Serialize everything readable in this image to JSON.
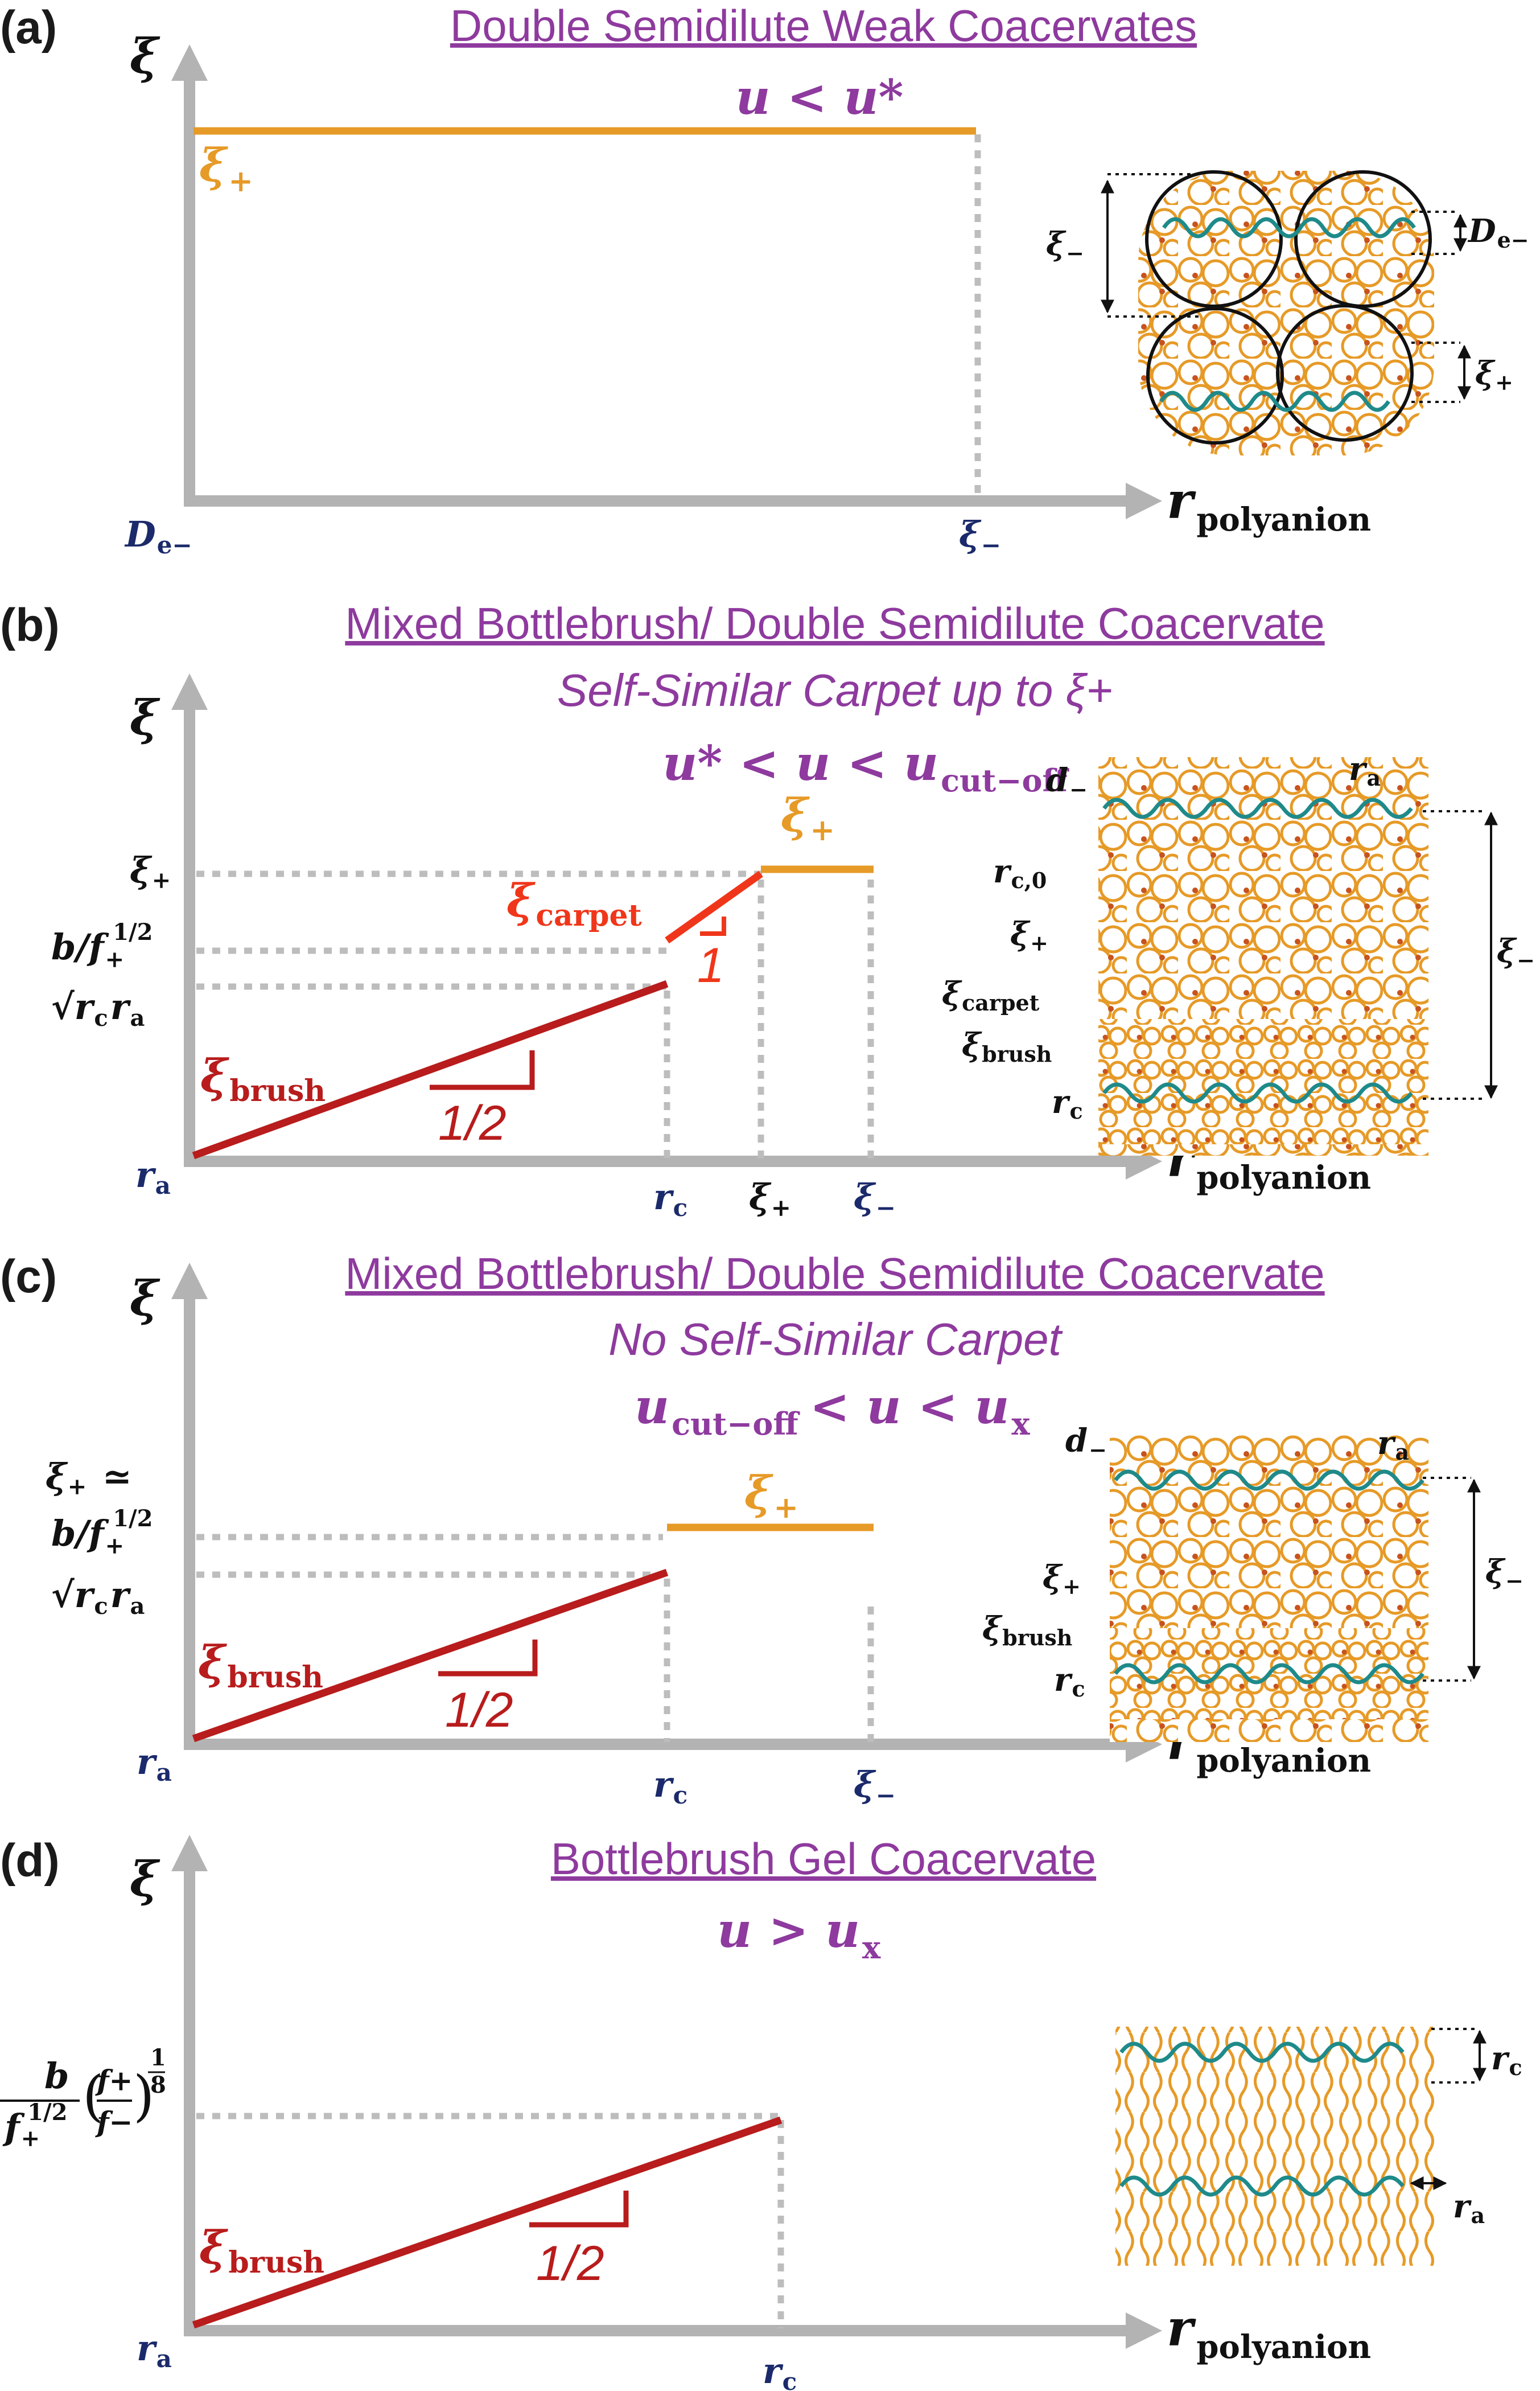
{
  "panels": [
    {
      "id": "a",
      "label": "(a)",
      "title": "Double Semidilute Weak Coacervates",
      "condition": "u < u*",
      "y_axis": "ξ",
      "x_axis": "r",
      "x_axis_sub": "polyanion",
      "x_ticks": [
        {
          "main": "D",
          "sub": "e−"
        },
        {
          "main": "ξ",
          "sub": "−"
        }
      ],
      "curve_labels": [
        {
          "main": "ξ",
          "sub": "+"
        }
      ],
      "schematic_labels": [
        {
          "main": "ξ",
          "sub": "−"
        },
        {
          "main": "D",
          "sub": "e−"
        },
        {
          "main": "ξ",
          "sub": "+"
        }
      ]
    },
    {
      "id": "b",
      "label": "(b)",
      "title": "Mixed Bottlebrush/ Double Semidilute Coacervate",
      "subtitle": "Self-Similar Carpet up to ξ+",
      "condition": "u* < u < u",
      "condition_sub": "cut−off",
      "y_axis": "ξ",
      "x_axis": "r",
      "x_axis_sub": "polyanion",
      "x_ticks": [
        {
          "main": "r",
          "sub": "a"
        },
        {
          "main": "r",
          "sub": "c"
        },
        {
          "main": "ξ",
          "sub": "+"
        },
        {
          "main": "ξ",
          "sub": "−"
        }
      ],
      "y_ticks": [
        {
          "main": "ξ",
          "sub": "+"
        },
        {
          "main": "b/f",
          "sub": "+",
          "sup": "1/2"
        },
        {
          "main": "√r",
          "sub": "c",
          "main2": "r",
          "sub2": "a"
        }
      ],
      "curve_labels": [
        {
          "main": "ξ",
          "sub": "brush"
        },
        {
          "main": "ξ",
          "sub": "carpet"
        },
        {
          "main": "ξ",
          "sub": "+"
        }
      ],
      "slopes": [
        "1/2",
        "1"
      ],
      "schematic_labels": [
        {
          "main": "d",
          "sub": "−"
        },
        {
          "main": "r",
          "sub": "a"
        },
        {
          "main": "r",
          "sub": "c,0"
        },
        {
          "main": "ξ",
          "sub": "+"
        },
        {
          "main": "ξ",
          "sub": "carpet"
        },
        {
          "main": "ξ",
          "sub": "brush"
        },
        {
          "main": "r",
          "sub": "c"
        },
        {
          "main": "ξ",
          "sub": "−"
        }
      ]
    },
    {
      "id": "c",
      "label": "(c)",
      "title": "Mixed Bottlebrush/ Double Semidilute Coacervate",
      "subtitle": "No Self-Similar Carpet",
      "condition": "u",
      "condition_sub": "cut−off",
      "condition_rest": "< u < u",
      "condition_sub2": "x",
      "y_axis": "ξ",
      "x_axis": "r",
      "x_axis_sub": "polyanion",
      "x_ticks": [
        {
          "main": "r",
          "sub": "a"
        },
        {
          "main": "r",
          "sub": "c"
        },
        {
          "main": "ξ",
          "sub": "−"
        }
      ],
      "y_ticks": [
        {
          "main": "ξ",
          "sub": "+",
          "tail": " ≃"
        },
        {
          "main": "b/f",
          "sub": "+",
          "sup": "1/2"
        },
        {
          "main": "√r",
          "sub": "c",
          "main2": "r",
          "sub2": "a"
        }
      ],
      "curve_labels": [
        {
          "main": "ξ",
          "sub": "brush"
        },
        {
          "main": "ξ",
          "sub": "+"
        }
      ],
      "slopes": [
        "1/2"
      ],
      "schematic_labels": [
        {
          "main": "d",
          "sub": "−"
        },
        {
          "main": "r",
          "sub": "a"
        },
        {
          "main": "ξ",
          "sub": "+"
        },
        {
          "main": "ξ",
          "sub": "brush"
        },
        {
          "main": "r",
          "sub": "c"
        },
        {
          "main": "ξ",
          "sub": "−"
        }
      ]
    },
    {
      "id": "d",
      "label": "(d)",
      "title": "Bottlebrush Gel Coacervate",
      "condition": "u > u",
      "condition_sub": "x",
      "y_axis": "ξ",
      "x_axis": "r",
      "x_axis_sub": "polyanion",
      "x_ticks": [
        {
          "main": "r",
          "sub": "a"
        },
        {
          "main": "r",
          "sub": "c"
        }
      ],
      "y_ticks": [
        {
          "num": "b",
          "den": "f",
          "den_sub": "+",
          "den_sup": "1/2",
          "frac_num": "f+",
          "frac_den": "f−",
          "exp_num": "1",
          "exp_den": "8"
        }
      ],
      "curve_labels": [
        {
          "main": "ξ",
          "sub": "brush"
        }
      ],
      "slopes": [
        "1/2"
      ],
      "schematic_labels": [
        {
          "main": "r",
          "sub": "c"
        },
        {
          "main": "r",
          "sub": "a"
        }
      ]
    }
  ],
  "colors": {
    "title": "#8e3a9e",
    "brush": "#b81c1c",
    "plus": "#e69a27",
    "carpet": "#f0361a",
    "axis": "#b3b3b3",
    "tick": "#1b2a6b",
    "chain": "#1f8a8a"
  }
}
